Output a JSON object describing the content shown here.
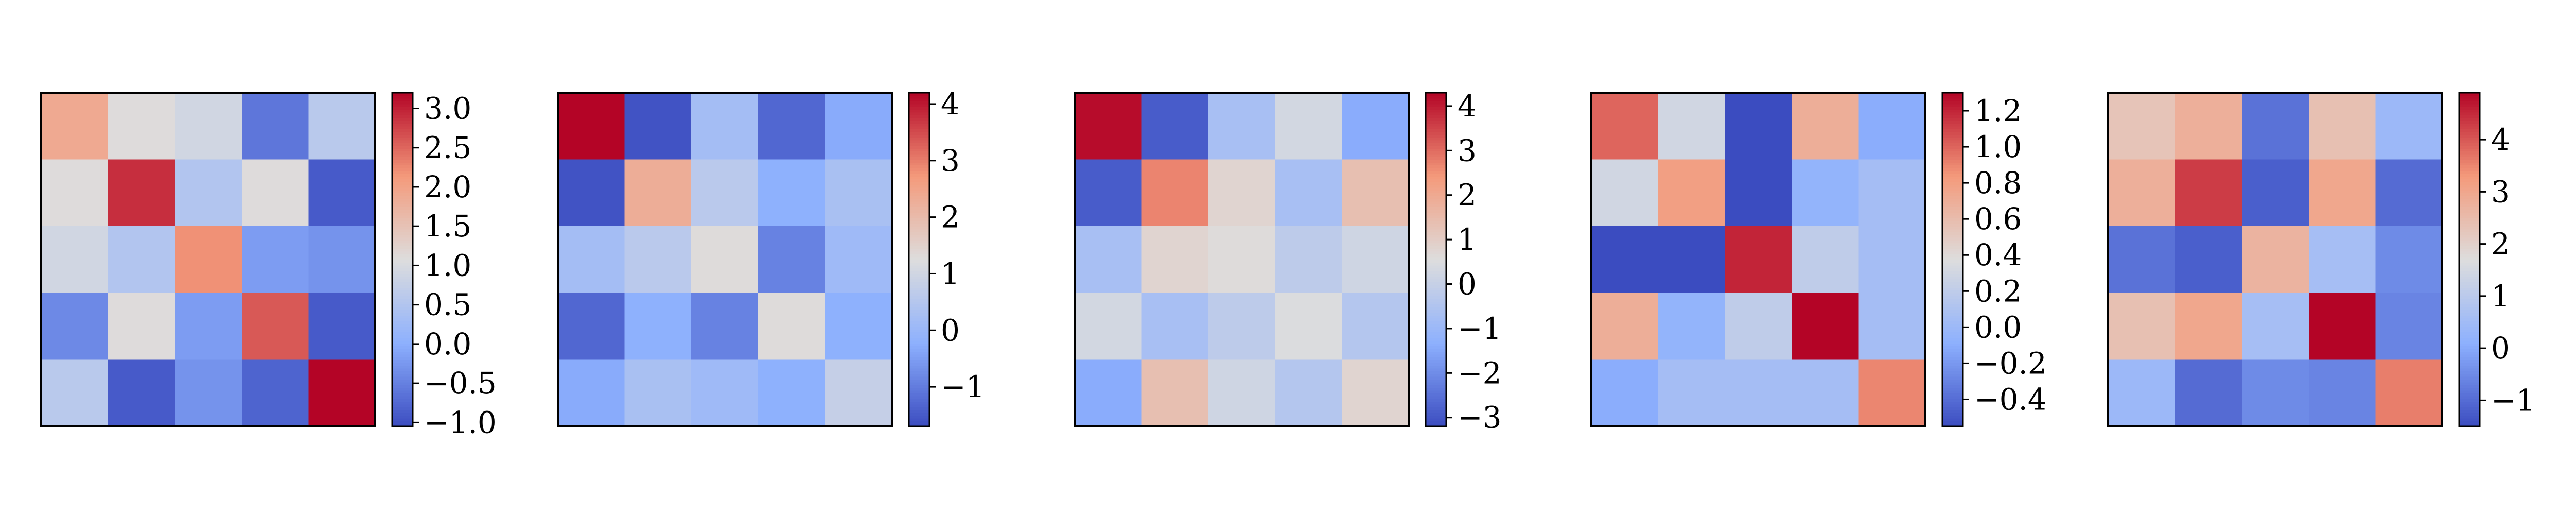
{
  "colors": {
    "cmap_low": "#3b4cc0",
    "cmap_mid": "#dddddd",
    "cmap_high": "#b40426",
    "frame": "#000000",
    "text": "#000000"
  },
  "chart_data": [
    {
      "type": "heatmap",
      "colormap": "coolwarm",
      "values": [
        [
          1.9,
          1.1,
          0.9,
          -0.6,
          0.6
        ],
        [
          1.1,
          2.9,
          0.5,
          1.1,
          -0.9
        ],
        [
          0.9,
          0.5,
          2.2,
          -0.2,
          -0.3
        ],
        [
          -0.4,
          1.1,
          -0.2,
          2.6,
          -0.9
        ],
        [
          0.6,
          -0.9,
          -0.3,
          -0.8,
          3.2
        ]
      ],
      "colorbar": {
        "vmin": -1.05,
        "vmax": 3.2,
        "ticks": [
          -1.0,
          -0.5,
          0.0,
          0.5,
          1.0,
          1.5,
          2.0,
          2.5,
          3.0
        ],
        "tick_labels": [
          "−1.0",
          "−0.5",
          "0.0",
          "0.5",
          "1.0",
          "1.5",
          "2.0",
          "2.5",
          "3.0"
        ]
      }
    },
    {
      "type": "heatmap",
      "colormap": "coolwarm",
      "values": [
        [
          4.2,
          -1.6,
          0.2,
          -1.3,
          -0.3
        ],
        [
          -1.6,
          2.3,
          0.6,
          -0.2,
          0.3
        ],
        [
          0.2,
          0.6,
          1.3,
          -0.9,
          0.1
        ],
        [
          -1.3,
          -0.2,
          -0.9,
          1.3,
          -0.2
        ],
        [
          -0.3,
          0.3,
          0.1,
          -0.2,
          0.8
        ]
      ],
      "colorbar": {
        "vmin": -1.7,
        "vmax": 4.2,
        "ticks": [
          -1,
          0,
          1,
          2,
          3,
          4
        ],
        "tick_labels": [
          "−1",
          "0",
          "1",
          "2",
          "3",
          "4"
        ]
      }
    },
    {
      "type": "heatmap",
      "colormap": "coolwarm",
      "values": [
        [
          4.2,
          -2.9,
          -0.7,
          0.3,
          -1.4
        ],
        [
          -2.9,
          2.7,
          0.8,
          -0.7,
          1.4
        ],
        [
          -0.7,
          0.8,
          0.6,
          -0.2,
          0.2
        ],
        [
          0.3,
          -0.7,
          -0.2,
          0.5,
          -0.4
        ],
        [
          -1.4,
          1.4,
          0.2,
          -0.4,
          0.8
        ]
      ],
      "colorbar": {
        "vmin": -3.2,
        "vmax": 4.3,
        "ticks": [
          -3,
          -2,
          -1,
          0,
          1,
          2,
          3,
          4
        ],
        "tick_labels": [
          "−3",
          "−2",
          "−1",
          "0",
          "1",
          "2",
          "3",
          "4"
        ]
      }
    },
    {
      "type": "heatmap",
      "colormap": "coolwarm",
      "values": [
        [
          1.0,
          0.3,
          -0.55,
          0.7,
          -0.1
        ],
        [
          0.3,
          0.8,
          -0.55,
          -0.05,
          0.05
        ],
        [
          -0.55,
          -0.55,
          1.2,
          0.2,
          0.05
        ],
        [
          0.7,
          -0.05,
          0.2,
          1.3,
          0.05
        ],
        [
          -0.1,
          0.05,
          0.05,
          0.05,
          0.9
        ]
      ],
      "colorbar": {
        "vmin": -0.55,
        "vmax": 1.3,
        "ticks": [
          -0.4,
          -0.2,
          0.0,
          0.2,
          0.4,
          0.6,
          0.8,
          1.0,
          1.2
        ],
        "tick_labels": [
          "−0.4",
          "−0.2",
          "0.0",
          "0.2",
          "0.4",
          "0.6",
          "0.8",
          "1.0",
          "1.2"
        ]
      }
    },
    {
      "type": "heatmap",
      "colormap": "coolwarm",
      "values": [
        [
          2.3,
          2.8,
          -0.9,
          2.4,
          0.4
        ],
        [
          2.8,
          4.3,
          -1.2,
          3.0,
          -1.0
        ],
        [
          -0.9,
          -1.2,
          2.7,
          0.6,
          -0.5
        ],
        [
          2.4,
          3.0,
          0.6,
          4.9,
          -0.6
        ],
        [
          0.4,
          -1.0,
          -0.5,
          -0.6,
          3.6
        ]
      ],
      "colorbar": {
        "vmin": -1.5,
        "vmax": 4.9,
        "ticks": [
          -1,
          0,
          1,
          2,
          3,
          4
        ],
        "tick_labels": [
          "−1",
          "0",
          "1",
          "2",
          "3",
          "4"
        ]
      }
    }
  ]
}
